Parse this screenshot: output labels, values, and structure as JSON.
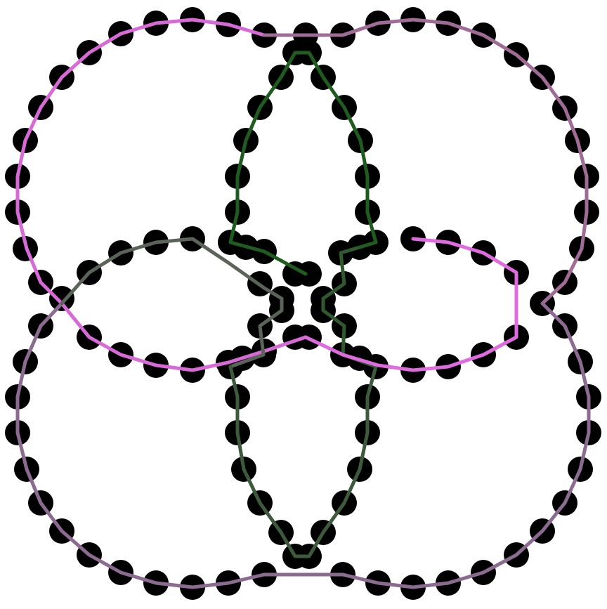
{
  "diagram": {
    "background": "#ffffff",
    "dot_color": "#000000",
    "paths": [
      {
        "id": "top-left-loop",
        "color": "#c56fc4"
      },
      {
        "id": "right-loop",
        "color": "#a06b95"
      },
      {
        "id": "bottom-left-loop",
        "color": "#7a6a80"
      },
      {
        "id": "bottom-right-loop",
        "color": "#8b6b90"
      },
      {
        "id": "top-petal",
        "color": "#1f5c1f"
      },
      {
        "id": "left-petal",
        "color": "#5a6458"
      },
      {
        "id": "bottom-petal",
        "color": "#3d5a3d"
      },
      {
        "id": "inner-left-arc",
        "color": "#d86ad8"
      },
      {
        "id": "inner-right-arc",
        "color": "#e06ae0"
      },
      {
        "id": "center-right-zigzag",
        "color": "#2e5a2e"
      }
    ]
  }
}
